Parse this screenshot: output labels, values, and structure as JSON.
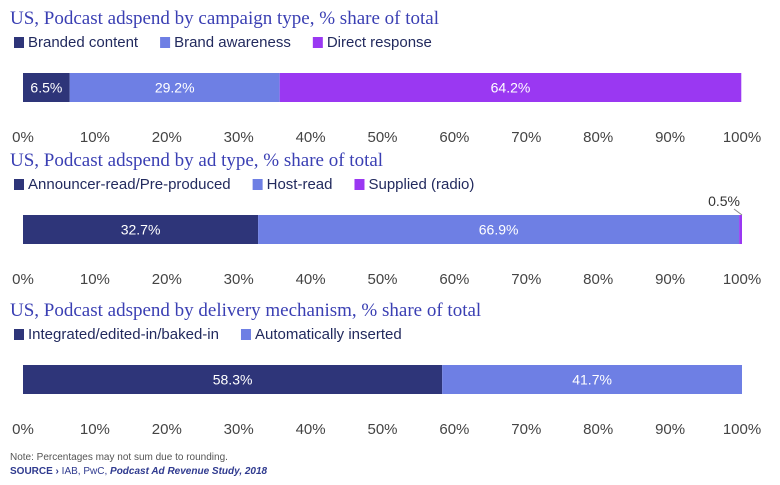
{
  "colors": {
    "dark": "#2e3579",
    "mid": "#6e7fe4",
    "violet": "#9a38f2"
  },
  "axis_ticks": [
    "0%",
    "10%",
    "20%",
    "30%",
    "40%",
    "50%",
    "60%",
    "70%",
    "80%",
    "90%",
    "100%"
  ],
  "chart_data": [
    {
      "type": "bar",
      "orientation": "horizontal-stacked",
      "title": "US, Podcast adspend by campaign type, % share of total",
      "xlim": [
        0,
        100
      ],
      "series": [
        {
          "name": "Branded content",
          "value": 6.5,
          "label": "6.5%",
          "color": "#2e3579"
        },
        {
          "name": "Brand awareness",
          "value": 29.2,
          "label": "29.2%",
          "color": "#6e7fe4"
        },
        {
          "name": "Direct response",
          "value": 64.2,
          "label": "64.2%",
          "color": "#9a38f2"
        }
      ]
    },
    {
      "type": "bar",
      "orientation": "horizontal-stacked",
      "title": "US, Podcast adspend by ad type, % share of total",
      "xlim": [
        0,
        100
      ],
      "series": [
        {
          "name": "Announcer-read/Pre-produced",
          "value": 32.7,
          "label": "32.7%",
          "color": "#2e3579"
        },
        {
          "name": "Host-read",
          "value": 66.9,
          "label": "66.9%",
          "color": "#6e7fe4"
        },
        {
          "name": "Supplied (radio)",
          "value": 0.5,
          "label": "0.5%",
          "color": "#9a38f2",
          "label_outside": true
        }
      ]
    },
    {
      "type": "bar",
      "orientation": "horizontal-stacked",
      "title": "US, Podcast adspend by delivery mechanism, % share of total",
      "xlim": [
        0,
        100
      ],
      "series": [
        {
          "name": "Integrated/edited-in/baked-in",
          "value": 58.3,
          "label": "58.3%",
          "color": "#2e3579"
        },
        {
          "name": "Automatically inserted",
          "value": 41.7,
          "label": "41.7%",
          "color": "#6e7fe4"
        }
      ]
    }
  ],
  "footer": {
    "note": "Note: Percentages may not sum due to rounding.",
    "source_prefix": "SOURCE › ",
    "source_orgs": "IAB, PwC, ",
    "source_title": "Podcast Ad Revenue Study, 2018"
  }
}
